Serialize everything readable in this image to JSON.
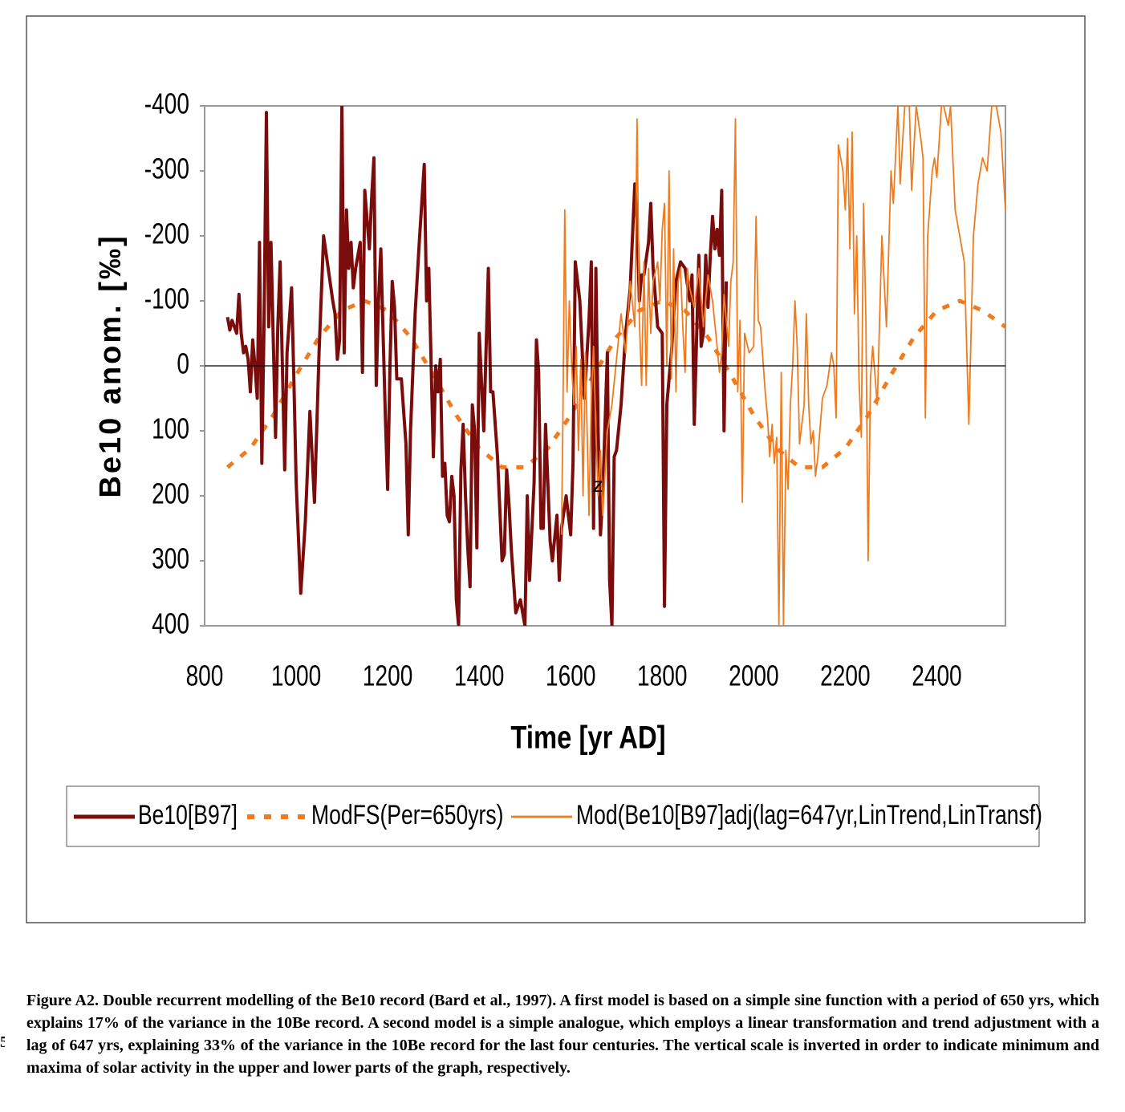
{
  "chart_data": {
    "type": "line",
    "x_label": "Time [yr AD]",
    "y_label": "Be10 anom. [‰]",
    "annotation": "z",
    "xlim": [
      800,
      2550
    ],
    "xticks": [
      800,
      1000,
      1200,
      1400,
      1600,
      1800,
      2000,
      2200,
      2400
    ],
    "ylim": [
      -400,
      400
    ],
    "yticks": [
      -400,
      -300,
      -200,
      -100,
      0,
      100,
      200,
      300,
      400
    ],
    "y_inverted": true,
    "series": [
      {
        "name": "Be10[B97]",
        "color": "#7b0c0c",
        "style": "solid",
        "x": [
          850,
          855,
          860,
          870,
          875,
          880,
          885,
          890,
          895,
          900,
          905,
          910,
          915,
          920,
          925,
          930,
          935,
          940,
          945,
          955,
          960,
          965,
          970,
          975,
          980,
          990,
          995,
          1000,
          1010,
          1020,
          1030,
          1040,
          1050,
          1060,
          1070,
          1080,
          1085,
          1090,
          1095,
          1100,
          1105,
          1110,
          1115,
          1120,
          1125,
          1130,
          1140,
          1145,
          1150,
          1160,
          1165,
          1170,
          1175,
          1180,
          1185,
          1190,
          1195,
          1200,
          1205,
          1210,
          1215,
          1220,
          1230,
          1240,
          1245,
          1250,
          1260,
          1270,
          1280,
          1285,
          1290,
          1300,
          1305,
          1310,
          1315,
          1320,
          1325,
          1330,
          1335,
          1340,
          1345,
          1350,
          1355,
          1360,
          1365,
          1370,
          1375,
          1380,
          1385,
          1390,
          1395,
          1400,
          1410,
          1420,
          1425,
          1430,
          1440,
          1450,
          1455,
          1460,
          1465,
          1470,
          1480,
          1490,
          1500,
          1505,
          1510,
          1520,
          1525,
          1530,
          1535,
          1540,
          1545,
          1550,
          1555,
          1560,
          1570,
          1575,
          1580,
          1590,
          1600,
          1605,
          1610,
          1620,
          1630,
          1640,
          1645,
          1650,
          1655,
          1660,
          1665,
          1670,
          1680,
          1685,
          1690,
          1695,
          1700,
          1710,
          1720,
          1730,
          1740,
          1745,
          1750,
          1755,
          1760,
          1770,
          1775,
          1780,
          1790,
          1800,
          1805,
          1810,
          1815,
          1820,
          1830,
          1840,
          1850,
          1860,
          1865,
          1870,
          1880,
          1885,
          1890,
          1895,
          1900,
          1905,
          1910,
          1915,
          1920,
          1925,
          1930,
          1935,
          1940
        ],
        "values": [
          -75,
          -55,
          -70,
          -50,
          -110,
          -50,
          -20,
          -30,
          -10,
          40,
          -40,
          0,
          50,
          -190,
          150,
          -70,
          -390,
          -60,
          -190,
          110,
          -60,
          -160,
          0,
          160,
          -20,
          -120,
          20,
          180,
          350,
          240,
          70,
          210,
          -20,
          -200,
          -150,
          -100,
          -80,
          -10,
          -40,
          -400,
          -20,
          -240,
          -150,
          -190,
          -120,
          -150,
          -190,
          10,
          -270,
          -180,
          -260,
          -320,
          30,
          -100,
          -180,
          -50,
          80,
          190,
          0,
          -130,
          -90,
          20,
          20,
          120,
          260,
          100,
          -80,
          -200,
          -310,
          -100,
          -150,
          140,
          0,
          40,
          -10,
          170,
          150,
          230,
          240,
          170,
          200,
          360,
          400,
          160,
          90,
          200,
          280,
          340,
          60,
          100,
          280,
          -50,
          100,
          -150,
          40,
          40,
          140,
          300,
          290,
          160,
          210,
          280,
          380,
          360,
          400,
          200,
          330,
          180,
          -40,
          10,
          250,
          250,
          90,
          180,
          270,
          300,
          230,
          330,
          250,
          200,
          260,
          150,
          -160,
          -100,
          50,
          -70,
          -160,
          250,
          -150,
          100,
          260,
          200,
          -20,
          330,
          400,
          140,
          130,
          60,
          -50,
          -120,
          -280,
          -220,
          -100,
          -140,
          -140,
          -190,
          -250,
          -150,
          -60,
          -50,
          370,
          60,
          20,
          -20,
          -130,
          -160,
          -150,
          -100,
          -140,
          90,
          -170,
          -30,
          -50,
          -170,
          -90,
          -170,
          -230,
          -180,
          -210,
          -170,
          -270,
          100,
          -130
        ]
      },
      {
        "name": "ModFS(Per=650yrs)",
        "color": "#f07b1e",
        "style": "dashed",
        "x": [
          850,
          900,
          950,
          1000,
          1050,
          1100,
          1150,
          1200,
          1250,
          1300,
          1350,
          1400,
          1450,
          1500,
          1550,
          1600,
          1650,
          1700,
          1750,
          1800,
          1850,
          1900,
          1950,
          2000,
          2050,
          2100,
          2150,
          2200,
          2250,
          2300,
          2350,
          2400,
          2450,
          2500,
          2550
        ],
        "values": [
          156,
          127,
          76,
          14,
          -44,
          -85,
          -100,
          -85,
          -44,
          14,
          76,
          127,
          156,
          156,
          127,
          76,
          14,
          -44,
          -85,
          -100,
          -85,
          -44,
          14,
          76,
          127,
          156,
          156,
          127,
          76,
          14,
          -44,
          -85,
          -100,
          -85,
          -60
        ]
      },
      {
        "name": "Mod(Be10[B97]adj(lag=647yr,LinTrend,LinTransf)",
        "color": "#f07b1e",
        "style": "solid",
        "x": [
          1580,
          1583,
          1587,
          1592,
          1597,
          1602,
          1607,
          1612,
          1617,
          1622,
          1627,
          1632,
          1640,
          1645,
          1650,
          1655,
          1660,
          1665,
          1670,
          1680,
          1690,
          1700,
          1710,
          1720,
          1730,
          1740,
          1745,
          1750,
          1755,
          1760,
          1765,
          1770,
          1775,
          1780,
          1790,
          1795,
          1800,
          1805,
          1810,
          1815,
          1820,
          1825,
          1830,
          1835,
          1840,
          1845,
          1850,
          1855,
          1860,
          1870,
          1880,
          1890,
          1900,
          1910,
          1920,
          1925,
          1930,
          1935,
          1945,
          1950,
          1955,
          1960,
          1965,
          1970,
          1975,
          1980,
          1990,
          2000,
          2005,
          2010,
          2015,
          2025,
          2030,
          2035,
          2040,
          2045,
          2050,
          2055,
          2060,
          2065,
          2070,
          2075,
          2080,
          2085,
          2090,
          2095,
          2100,
          2110,
          2115,
          2120,
          2125,
          2130,
          2135,
          2140,
          2150,
          2160,
          2170,
          2175,
          2180,
          2185,
          2195,
          2200,
          2205,
          2210,
          2215,
          2220,
          2225,
          2230,
          2235,
          2240,
          2245,
          2250,
          2255,
          2260,
          2270,
          2280,
          2290,
          2300,
          2305,
          2315,
          2320,
          2330,
          2340,
          2345,
          2355,
          2365,
          2370,
          2375,
          2380,
          2390,
          2395,
          2400,
          2410,
          2415,
          2425,
          2430,
          2440,
          2460,
          2470,
          2480,
          2490,
          2500,
          2510,
          2520,
          2530,
          2540,
          2550
        ],
        "values": [
          260,
          80,
          -240,
          40,
          -100,
          0,
          60,
          -30,
          130,
          -10,
          200,
          -20,
          230,
          50,
          -30,
          100,
          200,
          130,
          230,
          100,
          60,
          -10,
          -80,
          -20,
          -130,
          -60,
          -380,
          -70,
          30,
          -160,
          30,
          -150,
          -50,
          -130,
          -160,
          -100,
          -210,
          -250,
          0,
          -300,
          20,
          -180,
          40,
          -130,
          -150,
          -60,
          10,
          -150,
          -120,
          -90,
          -150,
          -60,
          -140,
          -100,
          -30,
          10,
          -20,
          -110,
          -30,
          -130,
          -160,
          -380,
          40,
          -70,
          210,
          -50,
          -20,
          -30,
          -230,
          -70,
          -60,
          40,
          80,
          140,
          90,
          150,
          110,
          400,
          10,
          400,
          130,
          190,
          60,
          0,
          -100,
          -30,
          120,
          60,
          -80,
          60,
          120,
          100,
          170,
          140,
          50,
          30,
          -20,
          0,
          80,
          -340,
          -300,
          -240,
          -350,
          -180,
          -360,
          -80,
          -200,
          20,
          110,
          -250,
          -70,
          300,
          20,
          -30,
          60,
          -200,
          -60,
          -300,
          -250,
          -400,
          -280,
          -400,
          -400,
          -270,
          -400,
          -350,
          -320,
          80,
          -200,
          -300,
          -320,
          -290,
          -400,
          -400,
          -370,
          -400,
          -240,
          -160,
          90,
          -200,
          -280,
          -320,
          -300,
          -400,
          -400,
          -360,
          -240
        ]
      }
    ]
  },
  "caption": "Figure A2. Double recurrent modelling of the Be10 record (Bard et al., 1997). A first model is based on a simple sine function with a period of 650 yrs, which explains 17% of the variance in the 10Be record. A second model is a simple analogue, which employs a linear transformation and trend adjustment with a lag of 647 yrs, explaining 33% of the variance in the 10Be record for the last four centuries. The vertical scale is inverted in order to indicate minimum and maxima of solar activity in the upper and lower parts of the graph, respectively.",
  "line_number": "5"
}
